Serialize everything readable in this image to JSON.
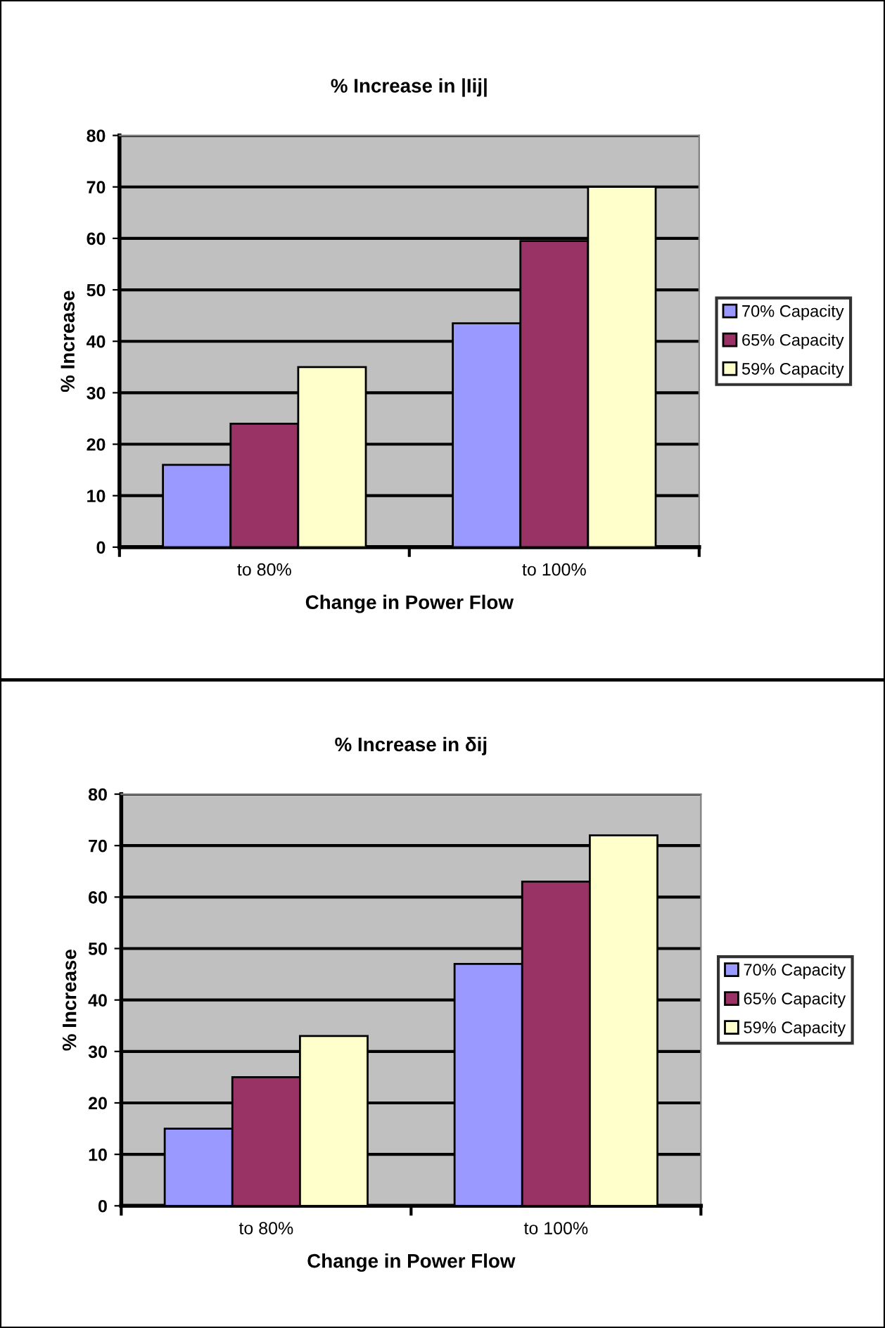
{
  "chart_data": [
    {
      "type": "bar",
      "title": "% Increase in |Iij|",
      "xlabel": "Change in Power Flow",
      "ylabel": "% Increase",
      "categories": [
        "to 80%",
        "to 100%"
      ],
      "series": [
        {
          "name": "70% Capacity",
          "color": "#9999ff",
          "values": [
            16,
            43.5
          ]
        },
        {
          "name": "65% Capacity",
          "color": "#993366",
          "values": [
            24,
            59.5
          ]
        },
        {
          "name": "59% Capacity",
          "color": "#ffffcc",
          "values": [
            35,
            70
          ]
        }
      ],
      "ylim": [
        0,
        80
      ],
      "yticks": [
        0,
        10,
        20,
        30,
        40,
        50,
        60,
        70,
        80
      ],
      "grid": "y",
      "legend": "right"
    },
    {
      "type": "bar",
      "title": "% Increase in δij",
      "xlabel": "Change in Power Flow",
      "ylabel": "% Increase",
      "categories": [
        "to 80%",
        "to 100%"
      ],
      "series": [
        {
          "name": "70% Capacity",
          "color": "#9999ff",
          "values": [
            15,
            47
          ]
        },
        {
          "name": "65% Capacity",
          "color": "#993366",
          "values": [
            25,
            63
          ]
        },
        {
          "name": "59% Capacity",
          "color": "#ffffcc",
          "values": [
            33,
            72
          ]
        }
      ],
      "ylim": [
        0,
        80
      ],
      "yticks": [
        0,
        10,
        20,
        30,
        40,
        50,
        60,
        70,
        80
      ],
      "grid": "y",
      "legend": "right"
    }
  ]
}
